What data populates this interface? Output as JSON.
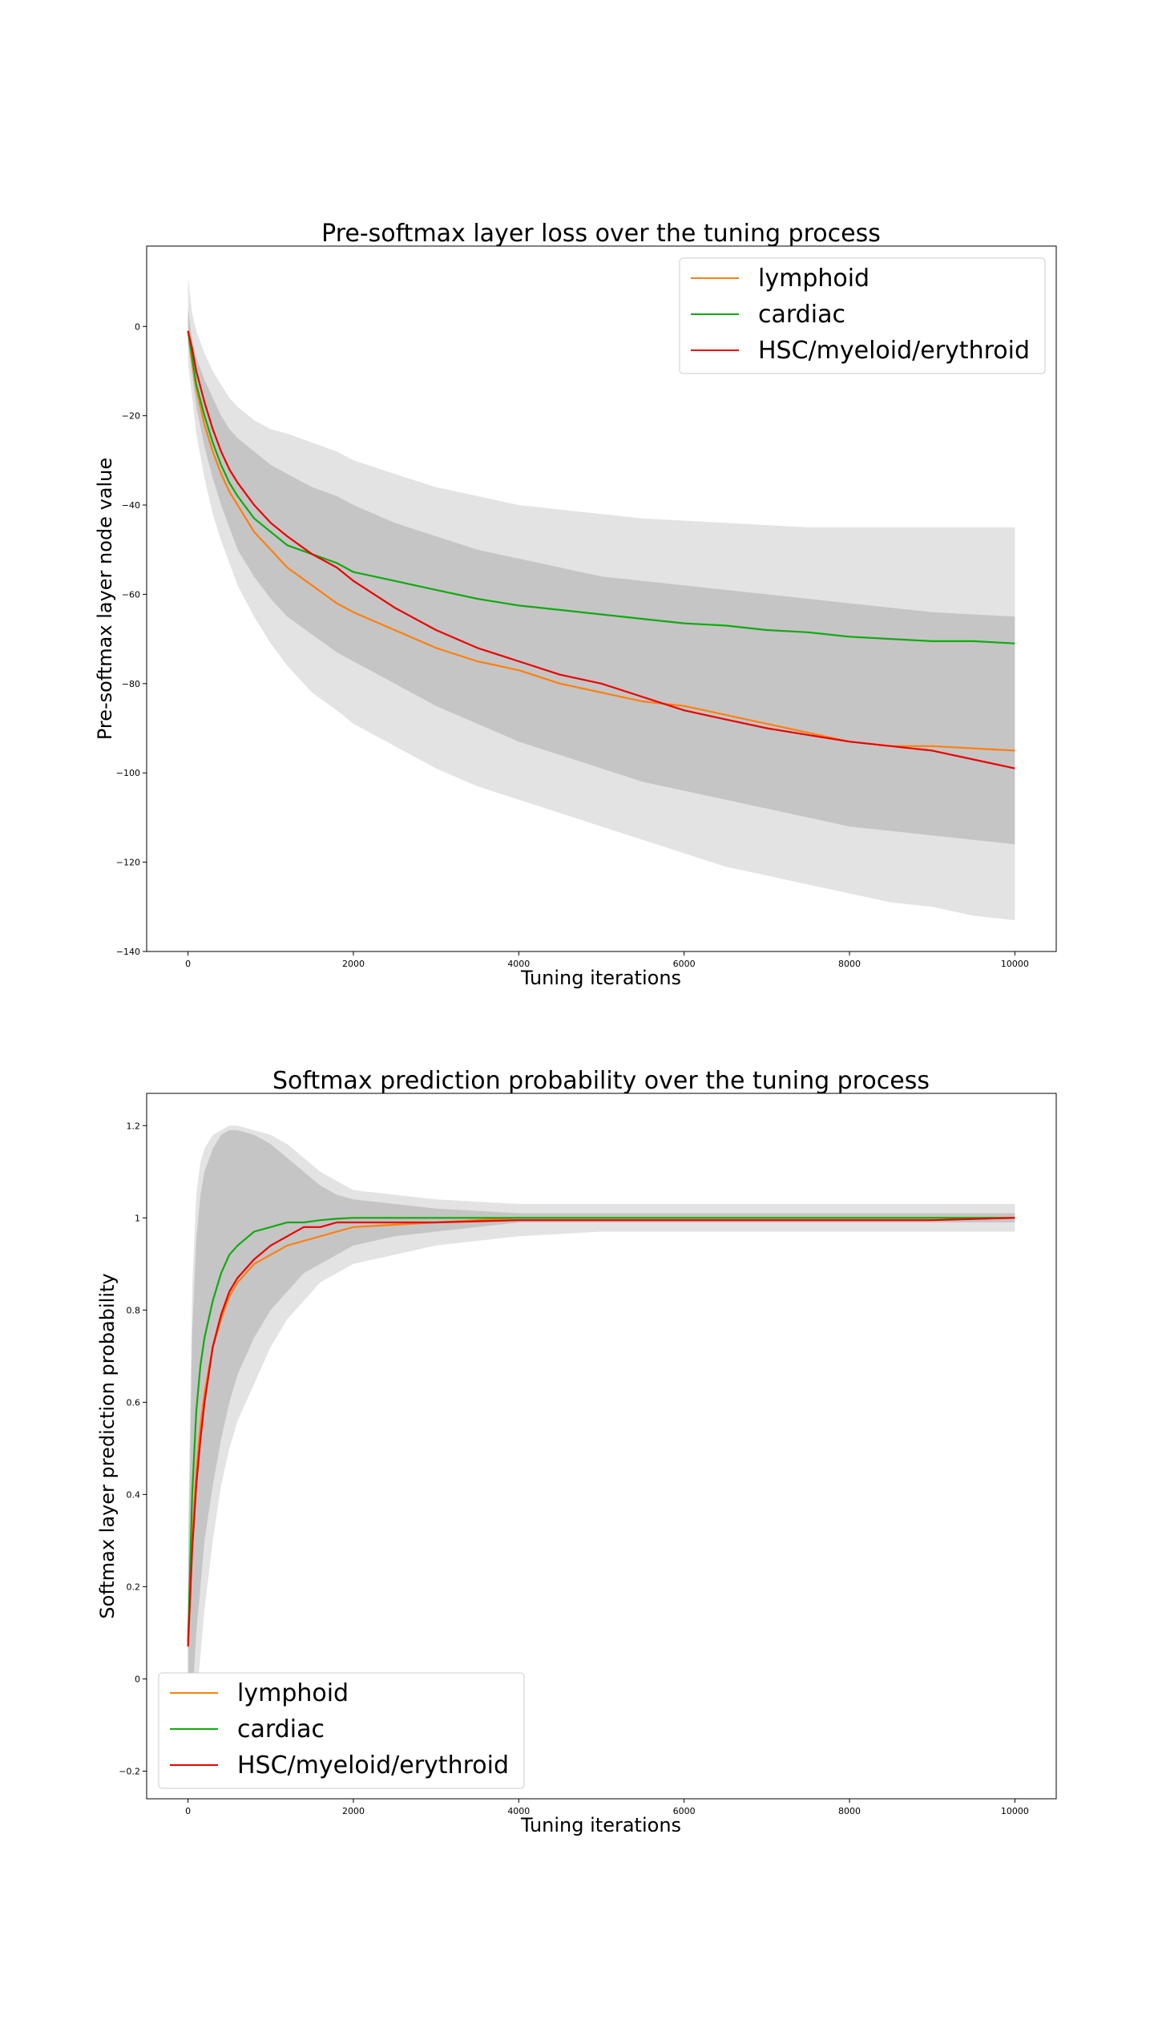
{
  "chart_data": [
    {
      "type": "line",
      "title": "Pre-softmax layer loss over the tuning process",
      "xlabel": "Tuning iterations",
      "ylabel": "Pre-softmax layer node value",
      "xlim": [
        -500,
        10500
      ],
      "ylim": [
        -140,
        18
      ],
      "xticks": [
        0,
        2000,
        4000,
        6000,
        8000,
        10000
      ],
      "yticks": [
        0,
        -20,
        -40,
        -60,
        -80,
        -100,
        -120,
        -140
      ],
      "legend": "top-right",
      "grid": false,
      "x": [
        0,
        50,
        100,
        200,
        300,
        400,
        500,
        600,
        800,
        1000,
        1200,
        1500,
        1800,
        2000,
        2500,
        3000,
        3500,
        4000,
        4500,
        5000,
        5500,
        6000,
        6500,
        7000,
        7500,
        8000,
        8500,
        9000,
        9500,
        10000
      ],
      "series": [
        {
          "name": "lymphoid",
          "color": "#ff7f0e",
          "values": [
            -1,
            -8,
            -14,
            -22,
            -28,
            -33,
            -37,
            -40,
            -46,
            -50,
            -54,
            -58,
            -62,
            -64,
            -68,
            -72,
            -75,
            -77,
            -80,
            -82,
            -84,
            -85,
            -87,
            -89,
            -91,
            -93,
            -94,
            -94,
            -94.5,
            -95
          ]
        },
        {
          "name": "cardiac",
          "color": "#10aa10",
          "values": [
            -1,
            -7,
            -13,
            -20,
            -26,
            -31,
            -35,
            -38,
            -43,
            -46,
            -49,
            -51,
            -53,
            -55,
            -57,
            -59,
            -61,
            -62.5,
            -63.5,
            -64.5,
            -65.5,
            -66.5,
            -67,
            -68,
            -68.5,
            -69.5,
            -70,
            -70.5,
            -70.5,
            -71
          ]
        },
        {
          "name": "HSC/myeloid/erythroid",
          "color": "#ee0000",
          "values": [
            -1,
            -5,
            -10,
            -17,
            -23,
            -28,
            -32,
            -35,
            -40,
            -44,
            -47,
            -51,
            -54,
            -57,
            -63,
            -68,
            -72,
            -75,
            -78,
            -80,
            -83,
            -86,
            -88,
            -90,
            -91.5,
            -93,
            -94,
            -95,
            -97,
            -99
          ]
        }
      ],
      "bands": {
        "inner_upper": [
          4,
          -3,
          -7,
          -12,
          -16,
          -20,
          -23,
          -25,
          -28,
          -31,
          -33,
          -36,
          -38,
          -40,
          -44,
          -47,
          -50,
          -52,
          -54,
          -56,
          -57,
          -58,
          -59,
          -60,
          -61,
          -62,
          -63,
          -64,
          -64.5,
          -65
        ],
        "inner_lower": [
          -4,
          -11,
          -18,
          -27,
          -34,
          -40,
          -45,
          -50,
          -56,
          -61,
          -65,
          -69,
          -73,
          -75,
          -80,
          -85,
          -89,
          -93,
          -96,
          -99,
          -102,
          -104,
          -106,
          -108,
          -110,
          -112,
          -113,
          -114,
          -115,
          -116
        ],
        "outer_upper": [
          11,
          3,
          -1,
          -6,
          -10,
          -13,
          -16,
          -18,
          -21,
          -23,
          -24,
          -26,
          -28,
          -30,
          -33,
          -36,
          -38,
          -40,
          -41,
          -42,
          -43,
          -43.5,
          -44,
          -44.5,
          -45,
          -45,
          -45,
          -45,
          -45,
          -45
        ],
        "outer_lower": [
          -8,
          -16,
          -24,
          -34,
          -42,
          -48,
          -53,
          -58,
          -65,
          -71,
          -76,
          -82,
          -86,
          -89,
          -94,
          -99,
          -103,
          -106,
          -109,
          -112,
          -115,
          -118,
          -121,
          -123,
          -125,
          -127,
          -129,
          -130,
          -132,
          -133
        ]
      }
    },
    {
      "type": "line",
      "title": "Softmax prediction probability over the tuning process",
      "xlabel": "Tuning iterations",
      "ylabel": "Softmax layer prediction probability",
      "xlim": [
        -500,
        10500
      ],
      "ylim": [
        -0.26,
        1.27
      ],
      "xticks": [
        0,
        2000,
        4000,
        6000,
        8000,
        10000
      ],
      "yticks": [
        1.2,
        1.0,
        0.8,
        0.6,
        0.4,
        0.2,
        0.0,
        -0.2
      ],
      "legend": "bottom-left",
      "grid": false,
      "x": [
        0,
        50,
        100,
        150,
        200,
        300,
        400,
        500,
        600,
        800,
        1000,
        1200,
        1400,
        1600,
        1800,
        2000,
        2500,
        3000,
        4000,
        5000,
        6000,
        7000,
        8000,
        9000,
        10000
      ],
      "series": [
        {
          "name": "lymphoid",
          "color": "#ff7f0e",
          "values": [
            0.08,
            0.3,
            0.45,
            0.55,
            0.62,
            0.72,
            0.78,
            0.83,
            0.86,
            0.9,
            0.92,
            0.94,
            0.95,
            0.96,
            0.97,
            0.98,
            0.985,
            0.99,
            1.0,
            1.0,
            1.0,
            1.0,
            1.0,
            1.0,
            1.0
          ]
        },
        {
          "name": "cardiac",
          "color": "#10aa10",
          "values": [
            0.08,
            0.4,
            0.58,
            0.68,
            0.74,
            0.82,
            0.88,
            0.92,
            0.94,
            0.97,
            0.98,
            0.99,
            0.99,
            0.995,
            0.998,
            1.0,
            1.0,
            1.0,
            1.0,
            1.0,
            1.0,
            1.0,
            1.0,
            1.0,
            1.0
          ]
        },
        {
          "name": "HSC/myeloid/erythroid",
          "color": "#ee0000",
          "values": [
            0.07,
            0.28,
            0.42,
            0.52,
            0.6,
            0.72,
            0.79,
            0.84,
            0.87,
            0.91,
            0.94,
            0.96,
            0.98,
            0.98,
            0.99,
            0.99,
            0.99,
            0.99,
            0.995,
            0.995,
            0.995,
            0.995,
            0.995,
            0.995,
            1.0
          ]
        }
      ],
      "bands": {
        "inner_upper": [
          0.2,
          0.75,
          0.95,
          1.05,
          1.1,
          1.15,
          1.18,
          1.19,
          1.19,
          1.18,
          1.16,
          1.13,
          1.1,
          1.07,
          1.05,
          1.04,
          1.03,
          1.02,
          1.01,
          1.01,
          1.01,
          1.01,
          1.01,
          1.01,
          1.01
        ],
        "inner_lower": [
          -0.1,
          -0.05,
          0.1,
          0.2,
          0.3,
          0.42,
          0.52,
          0.6,
          0.66,
          0.74,
          0.8,
          0.84,
          0.88,
          0.9,
          0.92,
          0.94,
          0.96,
          0.97,
          0.99,
          0.99,
          0.99,
          0.99,
          0.99,
          0.99,
          0.99
        ],
        "outer_upper": [
          0.3,
          0.85,
          1.05,
          1.12,
          1.15,
          1.18,
          1.19,
          1.2,
          1.2,
          1.19,
          1.18,
          1.16,
          1.13,
          1.1,
          1.08,
          1.06,
          1.05,
          1.04,
          1.03,
          1.03,
          1.03,
          1.03,
          1.03,
          1.03,
          1.03
        ],
        "outer_lower": [
          -0.2,
          -0.15,
          -0.05,
          0.05,
          0.15,
          0.3,
          0.42,
          0.5,
          0.56,
          0.64,
          0.72,
          0.78,
          0.82,
          0.86,
          0.88,
          0.9,
          0.92,
          0.94,
          0.96,
          0.97,
          0.97,
          0.97,
          0.97,
          0.97,
          0.97
        ]
      }
    }
  ]
}
